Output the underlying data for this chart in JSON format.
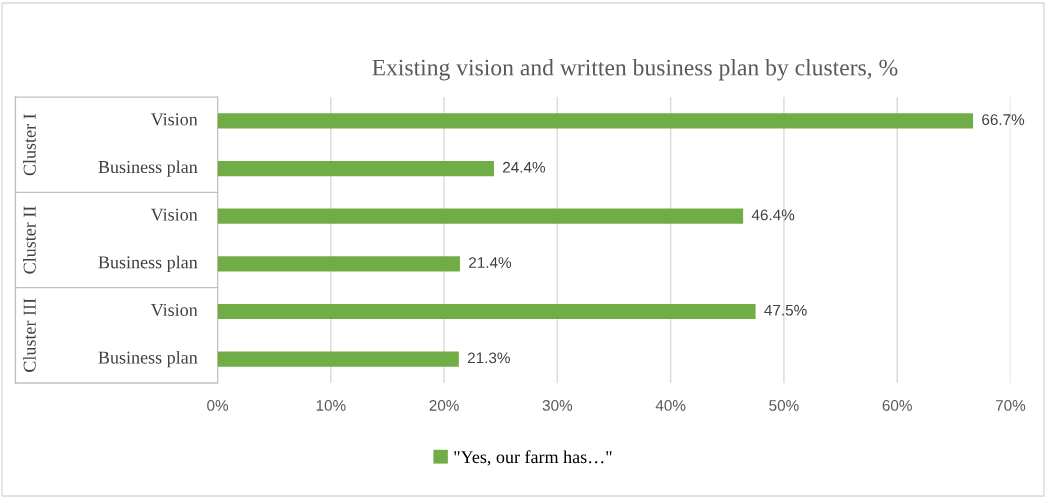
{
  "chart_data": {
    "type": "bar",
    "orientation": "horizontal",
    "title": "Existing vision and written business plan by clusters, %",
    "categories": [
      "Vision",
      "Business plan",
      "Vision",
      "Business plan",
      "Vision",
      "Business plan"
    ],
    "series": [
      {
        "name": "\"Yes, our farm has…\"",
        "color": "#70ad47",
        "values": [
          66.7,
          24.4,
          46.4,
          21.4,
          47.5,
          21.3
        ],
        "value_labels": [
          "66.7%",
          "24.4%",
          "46.4%",
          "21.4%",
          "47.5%",
          "21.3%"
        ]
      }
    ],
    "annotations": [
      "Cluster I",
      "Cluster II",
      "Cluster III"
    ],
    "xlim": [
      0,
      70
    ],
    "xticks": [
      {
        "value": 0,
        "label": "0%"
      },
      {
        "value": 10,
        "label": "10%"
      },
      {
        "value": 20,
        "label": "20%"
      },
      {
        "value": 30,
        "label": "30%"
      },
      {
        "value": 40,
        "label": "40%"
      },
      {
        "value": 50,
        "label": "50%"
      },
      {
        "value": 60,
        "label": "60%"
      },
      {
        "value": 70,
        "label": "70%"
      }
    ],
    "grid": "x",
    "legend": "bottom"
  }
}
